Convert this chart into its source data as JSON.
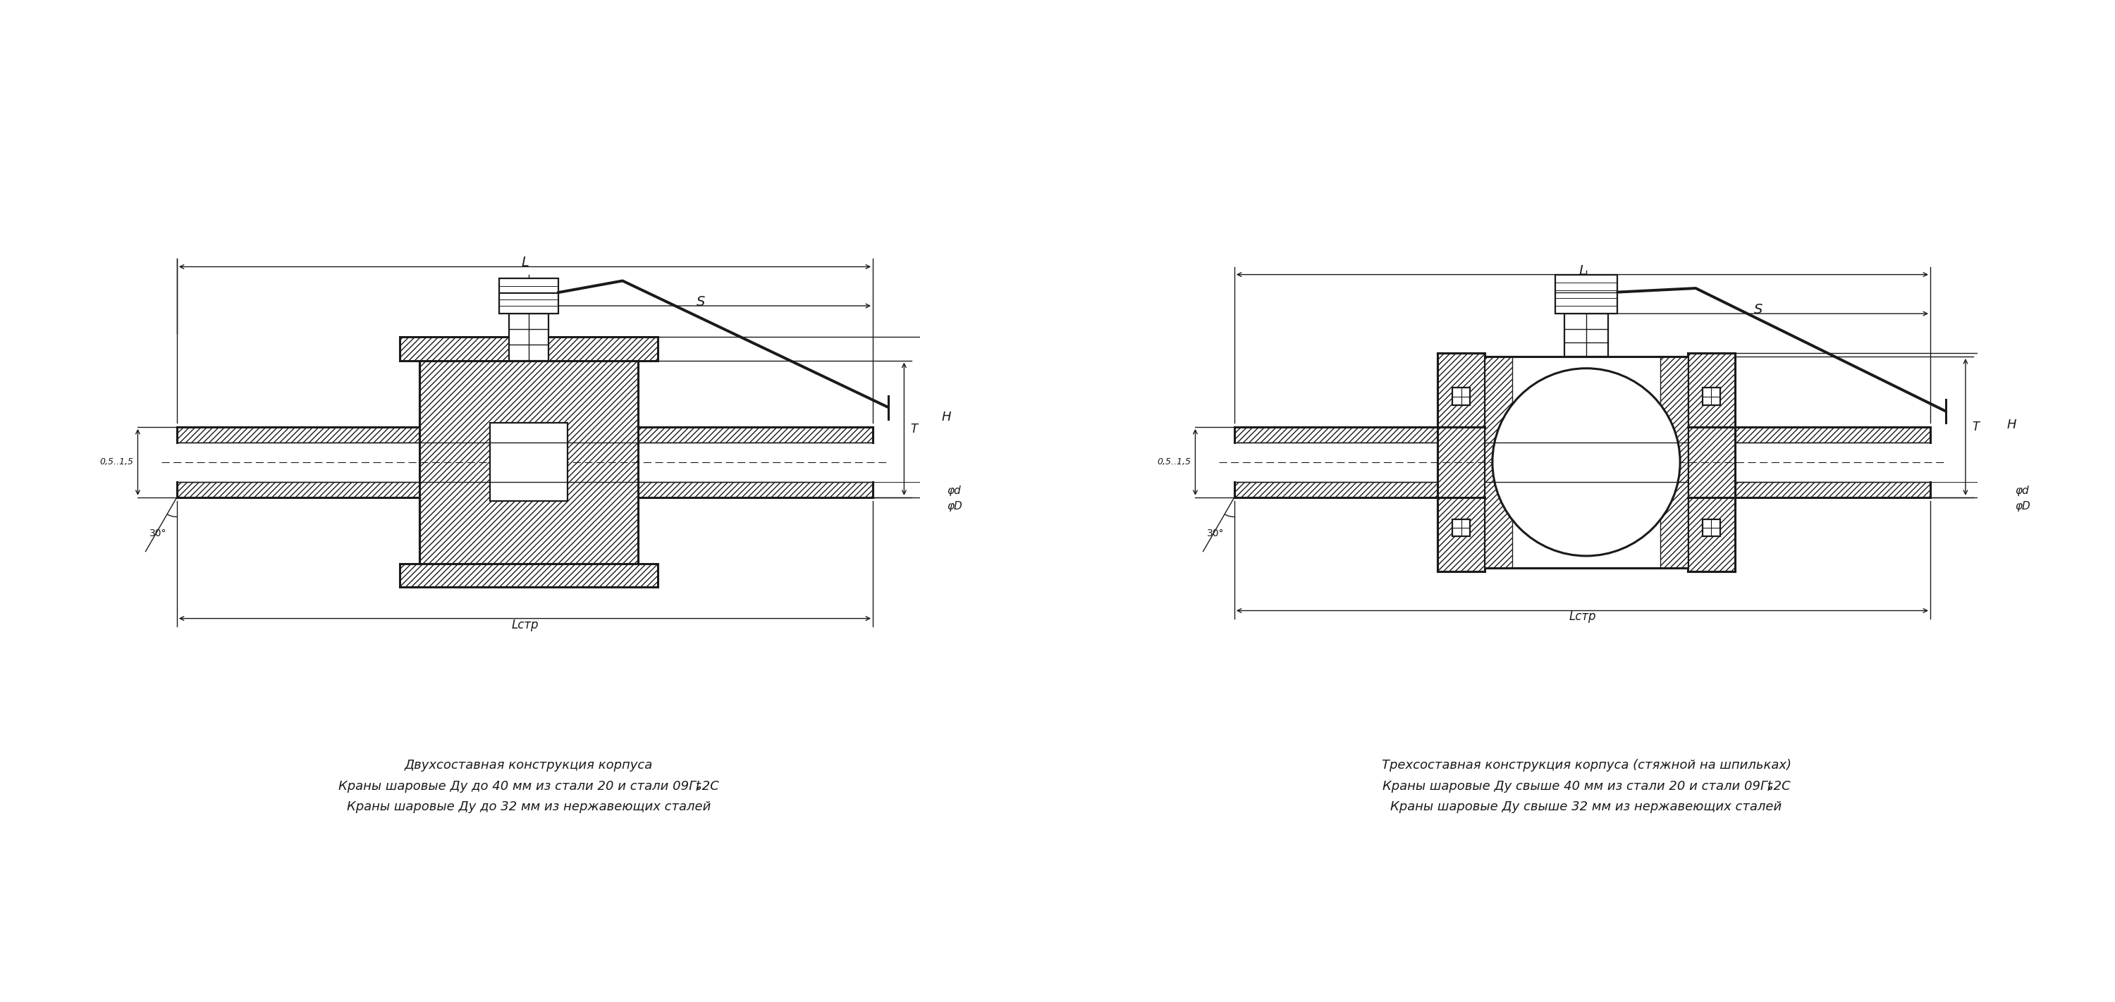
{
  "bg_color": "#ffffff",
  "line_color": "#1a1a1a",
  "text_color": "#1a1a1a",
  "title1": "Двухсоставная конструкция корпуса",
  "title2": "Краны шаровые Ду до 40 мм из стали 20 и стали 09Гȶ2С",
  "title3": "Краны шаровые Ду до 32 мм из нержавеющих сталей",
  "title4": "Трехсоставная конструкция корпуса (стяжной на шпильках)",
  "title5": "Краны шаровые Ду свыше 40 мм из стали 20 и стали 09Гȶ2С",
  "title6": "Краны шаровые Ду свыше 32 мм из нержавеющих сталей"
}
